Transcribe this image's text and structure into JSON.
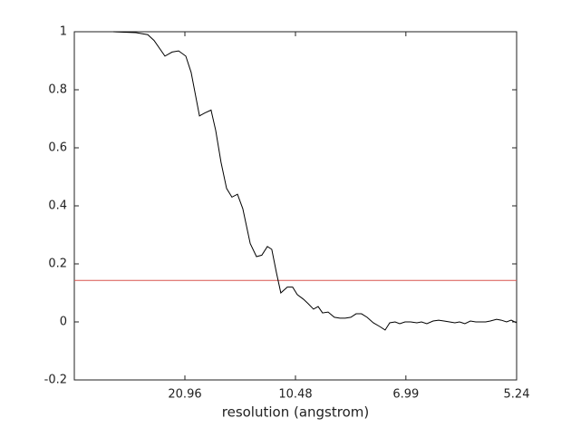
{
  "chart_data": {
    "type": "line",
    "xlabel": "resolution (angstrom)",
    "x": [
      0.0168,
      0.0266,
      0.0317,
      0.0344,
      0.0391,
      0.0422,
      0.045,
      0.0481,
      0.0504,
      0.054,
      0.0563,
      0.059,
      0.061,
      0.0633,
      0.0657,
      0.068,
      0.0704,
      0.0727,
      0.0759,
      0.0786,
      0.0809,
      0.0833,
      0.0852,
      0.0872,
      0.0891,
      0.0919,
      0.0942,
      0.0962,
      0.0989,
      0.1009,
      0.1032,
      0.1052,
      0.1071,
      0.1095,
      0.1122,
      0.1146,
      0.1169,
      0.1193,
      0.1216,
      0.1239,
      0.1263,
      0.129,
      0.1318,
      0.1341,
      0.1361,
      0.1384,
      0.1404,
      0.1427,
      0.1451,
      0.1478,
      0.1498,
      0.1521,
      0.1548,
      0.1572,
      0.1595,
      0.1619,
      0.1642,
      0.1662,
      0.1685,
      0.1709,
      0.1732,
      0.1752,
      0.1775,
      0.1795,
      0.1822,
      0.1842,
      0.1865,
      0.1885,
      0.1908
    ],
    "series": [
      {
        "color": "#000000",
        "values": [
          1.0,
          0.997,
          0.99,
          0.97,
          0.916,
          0.93,
          0.934,
          0.916,
          0.86,
          0.71,
          0.72,
          0.73,
          0.66,
          0.55,
          0.46,
          0.43,
          0.44,
          0.39,
          0.27,
          0.225,
          0.23,
          0.26,
          0.25,
          0.17,
          0.1,
          0.12,
          0.12,
          0.094,
          0.078,
          0.063,
          0.044,
          0.053,
          0.031,
          0.034,
          0.016,
          0.013,
          0.013,
          0.016,
          0.028,
          0.028,
          0.016,
          -0.003,
          -0.016,
          -0.028,
          -0.003,
          0,
          -0.006,
          0,
          0,
          -0.003,
          0,
          -0.006,
          0.003,
          0.006,
          0.003,
          0,
          -0.003,
          0,
          -0.006,
          0.003,
          0,
          0,
          0,
          0.003,
          0.009,
          0.006,
          0,
          0.006,
          -0.003
        ]
      }
    ],
    "reference_line": {
      "value": 0.143,
      "color": "#d9534f"
    },
    "xlim": [
      0,
      0.19084
    ],
    "xticks": [
      {
        "value": 0.04771,
        "label": "20.96"
      },
      {
        "value": 0.09542,
        "label": "10.48"
      },
      {
        "value": 0.14306,
        "label": "6.99"
      },
      {
        "value": 0.19084,
        "label": "5.24"
      }
    ],
    "ylim": [
      -0.2,
      1
    ],
    "yticks": [
      -0.2,
      0,
      0.2,
      0.4,
      0.6,
      0.8,
      1
    ]
  }
}
